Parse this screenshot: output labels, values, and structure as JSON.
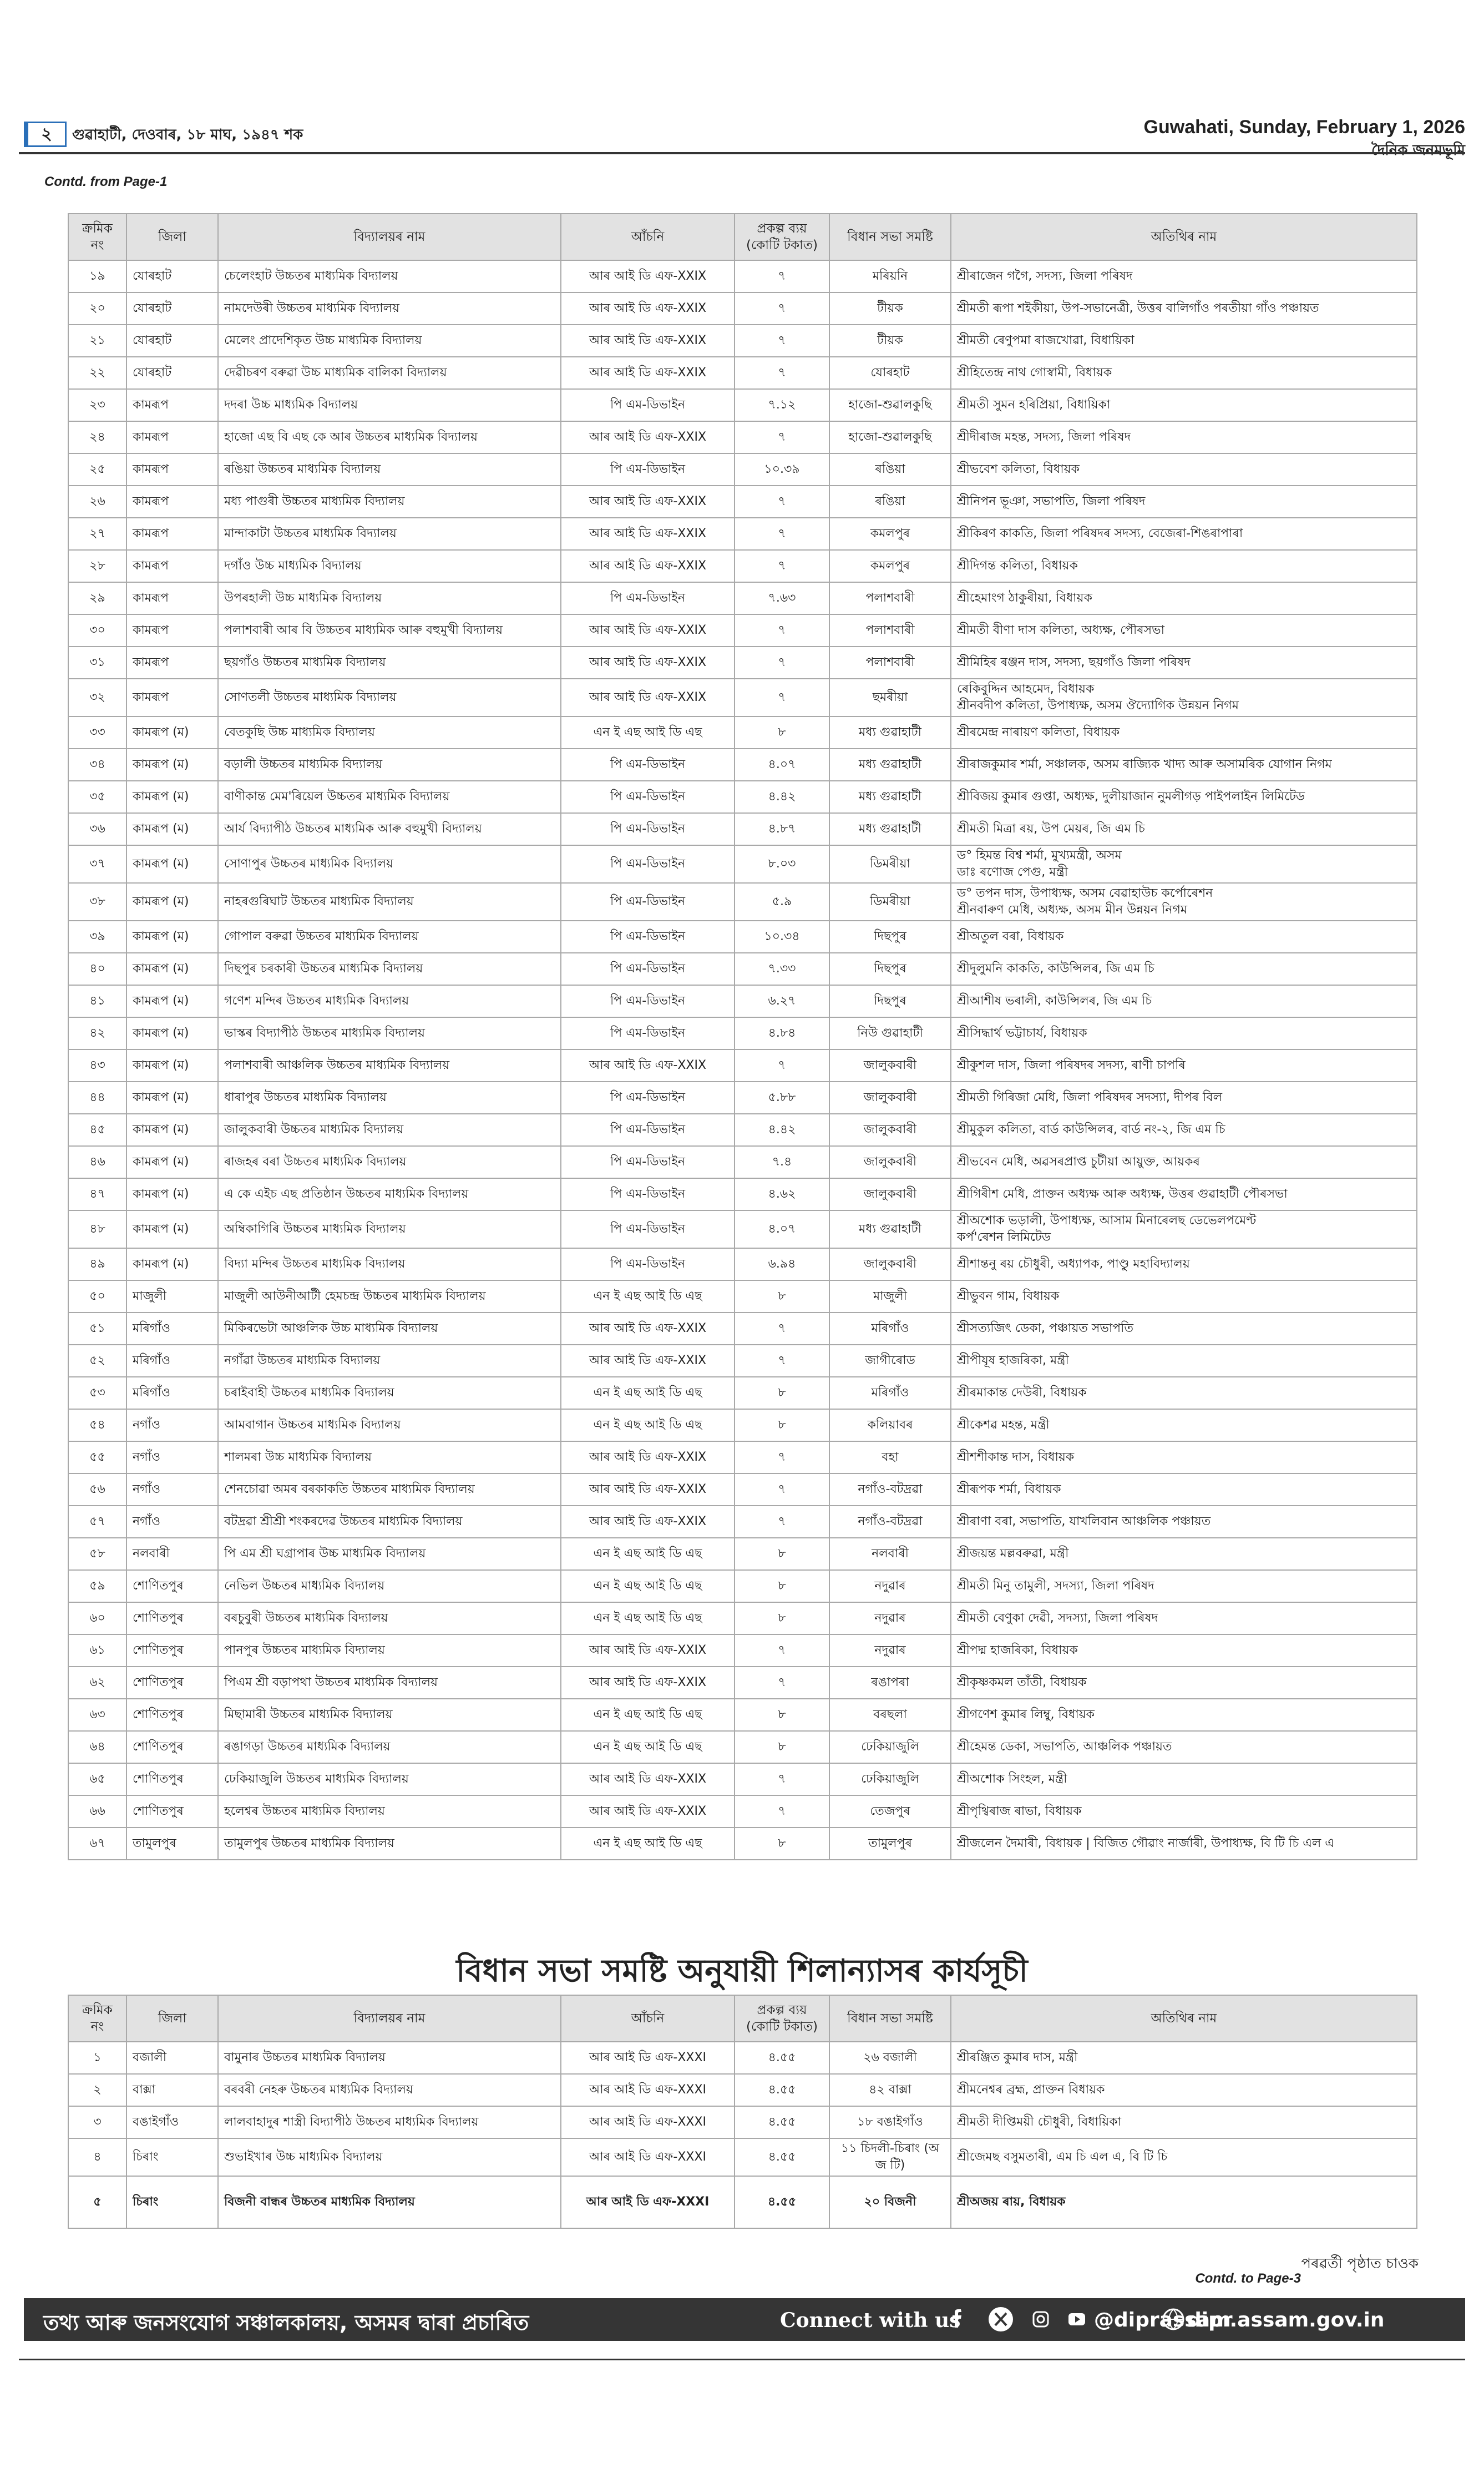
{
  "header": {
    "page_number": "২",
    "date_local": "গুৱাহাটী, দেওবাৰ, ১৮ মাঘ, ১৯৪৭ শক",
    "date_english": "Guwahati, Sunday, February 1, 2026",
    "paper_name": "দৈনিক জনমভূমি"
  },
  "continued_from": "Contd. from Page-1",
  "table1": {
    "columns": [
      [
        "ক্ৰমিক",
        "নং"
      ],
      "জিলা",
      "বিদ্যালয়ৰ নাম",
      "আঁচনি",
      [
        "প্ৰকল্প ব্যয়",
        "(কোটি টকাত)"
      ],
      "বিধান সভা সমষ্টি",
      "অতিথিৰ নাম"
    ],
    "rows": [
      [
        "১৯",
        "যোৰহাট",
        "চেলেংহাট উচ্চতৰ মাধ্যমিক বিদ্যালয়",
        "আৰ আই ডি এফ-XXIX",
        "৭",
        "মৰিয়নি",
        "শ্ৰীৰাজেন গগৈ, সদস্য, জিলা পৰিষদ"
      ],
      [
        "২০",
        "যোৰহাট",
        "নামদেউৰী উচ্চতৰ মাধ্যমিক বিদ্যালয়",
        "আৰ আই ডি এফ-XXIX",
        "৭",
        "টীয়ক",
        "শ্ৰীমতী ৰূপা শইকীয়া, উপ-সভানেত্ৰী, উত্তৰ বালিগাঁও পৰতীয়া গাঁও পঞ্চায়ত"
      ],
      [
        "২১",
        "যোৰহাট",
        "মেলেং প্ৰাদেশিকৃত উচ্চ মাধ্যমিক বিদ্যালয়",
        "আৰ আই ডি এফ-XXIX",
        "৭",
        "টীয়ক",
        "শ্ৰীমতী ৰেণুপমা ৰাজখোৱা, বিধায়িকা"
      ],
      [
        "২২",
        "যোৰহাট",
        "দেৱীচৰণ বৰুৱা উচ্চ মাধ্যমিক বালিকা বিদ্যালয়",
        "আৰ আই ডি এফ-XXIX",
        "৭",
        "যোৰহাট",
        "শ্ৰীহিতেন্দ্ৰ নাথ গোস্বামী, বিধায়ক"
      ],
      [
        "২৩",
        "কামৰূপ",
        "দদৰা উচ্চ মাধ্যমিক বিদ্যালয়",
        "পি এম-ডিভাইন",
        "৭.১২",
        "হাজো-শুৱালকুছি",
        "শ্ৰীমতী সুমন হৰিপ্ৰিয়া, বিধায়িকা"
      ],
      [
        "২৪",
        "কামৰূপ",
        "হাজো এছ বি এছ কে আৰ উচ্চতৰ মাধ্যমিক বিদ্যালয়",
        "আৰ আই ডি এফ-XXIX",
        "৭",
        "হাজো-শুৱালকুছি",
        "শ্ৰীদীৰাজ মহন্ত, সদস্য, জিলা পৰিষদ"
      ],
      [
        "২৫",
        "কামৰূপ",
        "ৰঙিয়া উচ্চতৰ মাধ্যমিক বিদ্যালয়",
        "পি এম-ডিভাইন",
        "১০.৩৯",
        "ৰঙিয়া",
        "শ্ৰীভবেশ কলিতা, বিধায়ক"
      ],
      [
        "২৬",
        "কামৰূপ",
        "মধ্য পাগুৰী উচ্চতৰ মাধ্যমিক বিদ্যালয়",
        "আৰ আই ডি এফ-XXIX",
        "৭",
        "ৰঙিয়া",
        "শ্ৰীনিপন ভূঞা, সভাপতি, জিলা পৰিষদ"
      ],
      [
        "২৭",
        "কামৰূপ",
        "মান্দাকাটা উচ্চতৰ মাধ্যমিক বিদ্যালয়",
        "আৰ আই ডি এফ-XXIX",
        "৭",
        "কমলপুৰ",
        "শ্ৰীকিৰণ কাকতি, জিলা পৰিষদৰ সদস্য, বেজেৰা-শিঙৰাপাৰা"
      ],
      [
        "২৮",
        "কামৰূপ",
        "দগাঁও উচ্চ মাধ্যমিক বিদ্যালয়",
        "আৰ আই ডি এফ-XXIX",
        "৭",
        "কমলপুৰ",
        "শ্ৰীদিগন্ত কলিতা, বিধায়ক"
      ],
      [
        "২৯",
        "কামৰূপ",
        "উপৰহালী উচ্চ মাধ্যমিক বিদ্যালয়",
        "পি এম-ডিভাইন",
        "৭.৬৩",
        "পলাশবাৰী",
        "শ্ৰীহেমাংগ ঠাকুৰীয়া, বিধায়ক"
      ],
      [
        "৩০",
        "কামৰূপ",
        "পলাশবাৰী আৰ বি উচ্চতৰ মাধ্যমিক আৰু বহুমুখী বিদ্যালয়",
        "আৰ আই ডি এফ-XXIX",
        "৭",
        "পলাশবাৰী",
        "শ্ৰীমতী বীণা দাস কলিতা, অধ্যক্ষ, পৌৰসভা"
      ],
      [
        "৩১",
        "কামৰূপ",
        "ছয়গাঁও উচ্চতৰ মাধ্যমিক বিদ্যালয়",
        "আৰ আই ডি এফ-XXIX",
        "৭",
        "পলাশবাৰী",
        "শ্ৰীমিহিৰ ৰঞ্জন দাস, সদস্য, ছয়গাঁও জিলা পৰিষদ"
      ],
      [
        "৩২",
        "কামৰূপ",
        "সোণতলী উচ্চতৰ মাধ্যমিক বিদ্যালয়",
        "আৰ আই ডি এফ-XXIX",
        "৭",
        "ছমৰীয়া",
        [
          "ৰেকিবুদ্দিন আহমেদ, বিধায়ক",
          "শ্ৰীনবদীপ কলিতা, উপাধ্যক্ষ, অসম ঔদ্যোগিক উন্নয়ন নিগম"
        ]
      ],
      [
        "৩৩",
        "কামৰূপ (ম)",
        "বেতকুছি উচ্চ মাধ্যমিক বিদ্যালয়",
        "এন ই এছ আই ডি এছ",
        "৮",
        "মধ্য গুৱাহাটী",
        "শ্ৰীৰমেন্দ্ৰ নাৰায়ণ কলিতা, বিধায়ক"
      ],
      [
        "৩৪",
        "কামৰূপ (ম)",
        "বড়ালী উচ্চতৰ মাধ্যমিক বিদ্যালয়",
        "পি এম-ডিভাইন",
        "৪.০৭",
        "মধ্য গুৱাহাটী",
        "শ্ৰীৰাজকুমাৰ শৰ্মা, সঞ্চালক, অসম ৰাজ্যিক খাদ্য আৰু অসামৰিক যোগান নিগম"
      ],
      [
        "৩৫",
        "কামৰূপ (ম)",
        "বাণীকান্ত মেম'ৰিয়েল উচ্চতৰ মাধ্যমিক বিদ্যালয়",
        "পি এম-ডিভাইন",
        "৪.৪২",
        "মধ্য গুৱাহাটী",
        "শ্ৰীবিজয় কুমাৰ গুপ্তা, অধ্যক্ষ, দুলীয়াজান নুমলীগড় পাইপলাইন লিমিটেড"
      ],
      [
        "৩৬",
        "কামৰূপ (ম)",
        "আৰ্য বিদ্যাপীঠ উচ্চতৰ মাধ্যমিক আৰু বহুমুখী বিদ্যালয়",
        "পি এম-ডিভাইন",
        "৪.৮৭",
        "মধ্য গুৱাহাটী",
        "শ্ৰীমতী মিত্ৰা ৰয়, উপ মেয়ৰ, জি এম চি"
      ],
      [
        "৩৭",
        "কামৰূপ (ম)",
        "সোণাপুৰ উচ্চতৰ মাধ্যমিক বিদ্যালয়",
        "পি এম-ডিভাইন",
        "৮.০৩",
        "ডিমৰীয়া",
        [
          "ড° হিমন্ত বিশ্ব শৰ্মা, মুখ্যমন্ত্ৰী, অসম",
          "ডাঃ ৰণোজ পেগু, মন্ত্ৰী"
        ]
      ],
      [
        "৩৮",
        "কামৰূপ (ম)",
        "নাহৰগুৰিঘাট উচ্চতৰ মাধ্যমিক বিদ্যালয়",
        "পি এম-ডিভাইন",
        "৫.৯",
        "ডিমৰীয়া",
        [
          "ড° তপন দাস, উপাধ্যক্ষ, অসম বেৱাহাউচ কৰ্পোৰেশন",
          "শ্ৰীনবাৰুণ মেধি, অধ্যক্ষ, অসম মীন উন্নয়ন নিগম"
        ]
      ],
      [
        "৩৯",
        "কামৰূপ (ম)",
        "গোপাল বৰুৱা উচ্চতৰ মাধ্যমিক বিদ্যালয়",
        "পি এম-ডিভাইন",
        "১০.৩৪",
        "দিছপুৰ",
        "শ্ৰীঅতুল বৰা, বিধায়ক"
      ],
      [
        "৪০",
        "কামৰূপ (ম)",
        "দিছপুৰ চৰকাৰী উচ্চতৰ মাধ্যমিক বিদ্যালয়",
        "পি এম-ডিভাইন",
        "৭.৩৩",
        "দিছপুৰ",
        "শ্ৰীদুলুমনি কাকতি, কাউন্সিলৰ, জি এম চি"
      ],
      [
        "৪১",
        "কামৰূপ (ম)",
        "গণেশ মন্দিৰ উচ্চতৰ মাধ্যমিক বিদ্যালয়",
        "পি এম-ডিভাইন",
        "৬.২৭",
        "দিছপুৰ",
        "শ্ৰীআশীষ ভৰালী, কাউন্সিলৰ, জি এম চি"
      ],
      [
        "৪২",
        "কামৰূপ (ম)",
        "ভাস্কৰ বিদ্যাপীঠ উচ্চতৰ মাধ্যমিক বিদ্যালয়",
        "পি এম-ডিভাইন",
        "৪.৮৪",
        "নিউ গুৱাহাটী",
        "শ্ৰীসিদ্ধাৰ্থ ভট্টাচাৰ্য, বিধায়ক"
      ],
      [
        "৪৩",
        "কামৰূপ (ম)",
        "পলাশবাৰী আঞ্চলিক উচ্চতৰ মাধ্যমিক বিদ্যালয়",
        "আৰ আই ডি এফ-XXIX",
        "৭",
        "জালুকবাৰী",
        "শ্ৰীকুশল দাস, জিলা পৰিষদৰ সদস্য, ৰাণী চাপৰি"
      ],
      [
        "৪৪",
        "কামৰূপ (ম)",
        "ধাৰাপুৰ উচ্চতৰ মাধ্যমিক বিদ্যালয়",
        "পি এম-ডিভাইন",
        "৫.৮৮",
        "জালুকবাৰী",
        "শ্ৰীমতী গিৰিজা মেধি, জিলা পৰিষদৰ সদস্যা, দীপৰ বিল"
      ],
      [
        "৪৫",
        "কামৰূপ (ম)",
        "জালুকবাৰী উচ্চতৰ মাধ্যমিক বিদ্যালয়",
        "পি এম-ডিভাইন",
        "৪.৪২",
        "জালুকবাৰী",
        "শ্ৰীমুকুল কলিতা, বাৰ্ড কাউন্সিলৰ, বাৰ্ড নং-২, জি এম চি"
      ],
      [
        "৪৬",
        "কামৰূপ (ম)",
        "ৰাজহৰ বৰা উচ্চতৰ মাধ্যমিক বিদ্যালয়",
        "পি এম-ডিভাইন",
        "৭.৪",
        "জালুকবাৰী",
        "শ্ৰীভবেন মেধি, অৱসৰপ্ৰাপ্ত চুটীয়া আয়ুক্ত, আয়কৰ"
      ],
      [
        "৪৭",
        "কামৰূপ (ম)",
        "এ কে এইচ এছ প্ৰতিষ্ঠান উচ্চতৰ মাধ্যমিক বিদ্যালয়",
        "পি এম-ডিভাইন",
        "৪.৬২",
        "জালুকবাৰী",
        "শ্ৰীগিৰীশ মেধি, প্ৰাক্তন অধ্যক্ষ আৰু অধ্যক্ষ, উত্তৰ গুৱাহাটী পৌৰসভা"
      ],
      [
        "৪৮",
        "কামৰূপ (ম)",
        "অম্বিকাগিৰি উচ্চতৰ মাধ্যমিক বিদ্যালয়",
        "পি এম-ডিভাইন",
        "৪.০৭",
        "মধ্য গুৱাহাটী",
        [
          "শ্ৰীঅশোক ভড়ালী, উপাধ্যক্ষ, আসাম মিনাৰেলছ ডেভেলপমেণ্ট",
          "কৰ্প'ৰেশন লিমিটেড"
        ]
      ],
      [
        "৪৯",
        "কামৰূপ (ম)",
        "বিদ্যা মন্দিৰ উচ্চতৰ মাধ্যমিক বিদ্যালয়",
        "পি এম-ডিভাইন",
        "৬.৯৪",
        "জালুকবাৰী",
        "শ্ৰীশান্তনু ৰয় চৌধুৰী, অধ্যাপক, পাণ্ডু মহাবিদ্যালয়"
      ],
      [
        "৫০",
        "মাজুলী",
        "মাজুলী আউনীআটী হেমচন্দ্ৰ উচ্চতৰ মাধ্যমিক বিদ্যালয়",
        "এন ই এছ আই ডি এছ",
        "৮",
        "মাজুলী",
        "শ্ৰীভুবন গাম, বিধায়ক"
      ],
      [
        "৫১",
        "মৰিগাঁও",
        "মিকিৰভেটা আঞ্চলিক উচ্চ মাধ্যমিক বিদ্যালয়",
        "আৰ আই ডি এফ-XXIX",
        "৭",
        "মৰিগাঁও",
        "শ্ৰীসত্যজিৎ ডেকা, পঞ্চায়ত সভাপতি"
      ],
      [
        "৫২",
        "মৰিগাঁও",
        "নগাঁৱা উচ্চতৰ মাধ্যমিক বিদ্যালয়",
        "আৰ আই ডি এফ-XXIX",
        "৭",
        "জাগীৰোড",
        "শ্ৰীপীযূষ হাজৰিকা, মন্ত্ৰী"
      ],
      [
        "৫৩",
        "মৰিগাঁও",
        "চৰাইবাহী উচ্চতৰ মাধ্যমিক বিদ্যালয়",
        "এন ই এছ আই ডি এছ",
        "৮",
        "মৰিগাঁও",
        "শ্ৰীৰমাকান্ত দেউৰী, বিধায়ক"
      ],
      [
        "৫৪",
        "নগাঁও",
        "আমবাগান উচ্চতৰ মাধ্যমিক বিদ্যালয়",
        "এন ই এছ আই ডি এছ",
        "৮",
        "কলিয়াবৰ",
        "শ্ৰীকেশৱ মহন্ত, মন্ত্ৰী"
      ],
      [
        "৫৫",
        "নগাঁও",
        "শালমৰা উচ্চ মাধ্যমিক বিদ্যালয়",
        "আৰ আই ডি এফ-XXIX",
        "৭",
        "বহা",
        "শ্ৰীশশীকান্ত দাস, বিধায়ক"
      ],
      [
        "৫৬",
        "নগাঁও",
        "শেনচোৱা অমৰ বৰকাকতি উচ্চতৰ মাধ্যমিক বিদ্যালয়",
        "আৰ আই ডি এফ-XXIX",
        "৭",
        "নগাঁও-বটদ্ৰৱা",
        "শ্ৰীৰূপক শৰ্মা, বিধায়ক"
      ],
      [
        "৫৭",
        "নগাঁও",
        "বটদ্ৰৱা শ্ৰীশ্ৰী শংকৰদেৱ উচ্চতৰ মাধ্যমিক বিদ্যালয়",
        "আৰ আই ডি এফ-XXIX",
        "৭",
        "নগাঁও-বটদ্ৰৱা",
        "শ্ৰীৰাণা বৰা, সভাপতি, যাখলিবান আঞ্চলিক পঞ্চায়ত"
      ],
      [
        "৫৮",
        "নলবাৰী",
        "পি এম শ্ৰী ঘগ্ৰাপাৰ উচ্চ মাধ্যমিক বিদ্যালয়",
        "এন ই এছ আই ডি এছ",
        "৮",
        "নলবাৰী",
        "শ্ৰীজয়ন্ত মল্লবৰুৱা, মন্ত্ৰী"
      ],
      [
        "৫৯",
        "শোণিতপুৰ",
        "নেভিল উচ্চতৰ মাধ্যমিক বিদ্যালয়",
        "এন ই এছ আই ডি এছ",
        "৮",
        "নদুৱাৰ",
        "শ্ৰীমতী মিনু তামুলী, সদস্যা, জিলা পৰিষদ"
      ],
      [
        "৬০",
        "শোণিতপুৰ",
        "বৰচুবুৰী উচ্চতৰ মাধ্যমিক বিদ্যালয়",
        "এন ই এছ আই ডি এছ",
        "৮",
        "নদুৱাৰ",
        "শ্ৰীমতী বেণুকা দেৱী, সদস্যা, জিলা পৰিষদ"
      ],
      [
        "৬১",
        "শোণিতপুৰ",
        "পানপুৰ উচ্চতৰ মাধ্যমিক বিদ্যালয়",
        "আৰ আই ডি এফ-XXIX",
        "৭",
        "নদুৱাৰ",
        "শ্ৰীপদ্ম হাজৰিকা, বিধায়ক"
      ],
      [
        "৬২",
        "শোণিতপুৰ",
        "পিএম শ্ৰী বড়াপথা উচ্চতৰ মাধ্যমিক বিদ্যালয়",
        "আৰ আই ডি এফ-XXIX",
        "৭",
        "ৰঙাপৰা",
        "শ্ৰীকৃষ্ণকমল তাঁতী, বিধায়ক"
      ],
      [
        "৬৩",
        "শোণিতপুৰ",
        "মিছামাৰী উচ্চতৰ মাধ্যমিক বিদ্যালয়",
        "এন ই এছ আই ডি এছ",
        "৮",
        "বৰছলা",
        "শ্ৰীগণেশ কুমাৰ লিম্বু, বিধায়ক"
      ],
      [
        "৬৪",
        "শোণিতপুৰ",
        "ৰঙাগড়া উচ্চতৰ মাধ্যমিক বিদ্যালয়",
        "এন ই এছ আই ডি এছ",
        "৮",
        "ঢেকিয়াজুলি",
        "শ্ৰীহেমন্ত ডেকা, সভাপতি, আঞ্চলিক পঞ্চায়ত"
      ],
      [
        "৬৫",
        "শোণিতপুৰ",
        "ঢেকিয়াজুলি উচ্চতৰ মাধ্যমিক বিদ্যালয়",
        "আৰ আই ডি এফ-XXIX",
        "৭",
        "ঢেকিয়াজুলি",
        "শ্ৰীঅশোক সিংহল, মন্ত্ৰী"
      ],
      [
        "৬৬",
        "শোণিতপুৰ",
        "হলেশ্বৰ উচ্চতৰ মাধ্যমিক বিদ্যালয়",
        "আৰ আই ডি এফ-XXIX",
        "৭",
        "তেজপুৰ",
        "শ্ৰীপৃথ্বিৰাজ ৰাভা, বিধায়ক"
      ],
      [
        "৬৭",
        "তামুলপুৰ",
        "তামুলপুৰ উচ্চতৰ মাধ্যমিক বিদ্যালয়",
        "এন ই এছ আই ডি এছ",
        "৮",
        "তামুলপুৰ",
        "শ্ৰীজলেন দৈমাৰী, বিধায়ক  |  বিজিত গৌৱাং নাৰ্জাৰী, উপাধ্যক্ষ, বি টি চি এল এ"
      ]
    ]
  },
  "section_title": "বিধান সভা সমষ্টি অনুযায়ী শিলান্যাসৰ কাৰ্যসূচী",
  "table2": {
    "columns": [
      [
        "ক্ৰমিক",
        "নং"
      ],
      "জিলা",
      "বিদ্যালয়ৰ নাম",
      "আঁচনি",
      [
        "প্ৰকল্প ব্যয়",
        "(কোটি টকাত)"
      ],
      "বিধান সভা সমষ্টি",
      "অতিথিৰ নাম"
    ],
    "rows": [
      [
        "১",
        "বজালী",
        "বামুনাৰ উচ্চতৰ মাধ্যমিক বিদ্যালয়",
        "আৰ আই ডি এফ-XXXI",
        "৪.৫৫",
        "২৬ বজালী",
        "শ্ৰীৰঞ্জিত কুমাৰ দাস, মন্ত্ৰী"
      ],
      [
        "২",
        "বাক্সা",
        "বৰবৰী নেহৰু উচ্চতৰ মাধ্যমিক বিদ্যালয়",
        "আৰ আই ডি এফ-XXXI",
        "৪.৫৫",
        "৪২ বাক্সা",
        "শ্ৰীমনেশ্বৰ ব্ৰহ্ম, প্ৰাক্তন বিধায়ক"
      ],
      [
        "৩",
        "বঙাইগাঁও",
        "লালবাহাদুৰ শাস্ত্ৰী বিদ্যাপীঠ উচ্চতৰ মাধ্যমিক বিদ্যালয়",
        "আৰ আই ডি এফ-XXXI",
        "৪.৫৫",
        "১৮ বঙাইগাঁও",
        "শ্ৰীমতী দীপ্তিময়ী চৌধুৰী, বিধায়িকা"
      ],
      [
        "৪",
        "চিৰাং",
        "শুভাইখাৰ উচ্চ মাধ্যমিক বিদ্যালয়",
        "আৰ আই ডি এফ-XXXI",
        "৪.৫৫",
        "১১ চিদলী-চিৰাং (অ জ টি)",
        "শ্ৰীজেমছ বসুমতাৰী, এম চি এল এ, বি টি চি"
      ],
      [
        "৫",
        "চিৰাং",
        "বিজনী বান্ধৰ উচ্চতৰ মাধ্যমিক বিদ্যালয়",
        "আৰ আই ডি এফ-XXXI",
        "৪.৫৫",
        "২০ বিজনী",
        "শ্ৰীঅজয় ৰায়, বিধায়ক"
      ]
    ]
  },
  "next_page_note": "পৰৱৰ্তী পৃষ্ঠাত চাওক",
  "continued_to": "Contd. to Page-3",
  "footer": {
    "publisher": "তথ্য আৰু জনসংযোগ সঞ্চালকালয়, অসমৰ দ্বাৰা প্ৰচাৰিত",
    "connect": "Connect with us",
    "handle": "@diprassam",
    "website": "dipr.assam.gov.in"
  }
}
